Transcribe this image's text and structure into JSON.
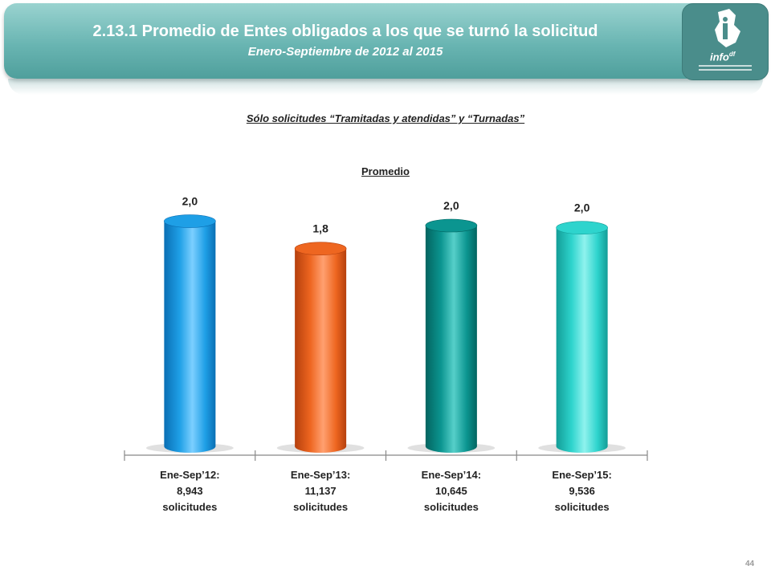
{
  "header": {
    "title": "2.13.1 Promedio de Entes obligados a los que se turnó la solicitud",
    "subtitle": "Enero-Septiembre de 2012 al 2015",
    "logo_text": "info",
    "logo_superscript": "df"
  },
  "section_title": "Sólo solicitudes “Tramitadas y atendidas” y “Turnadas”",
  "page_number": "44",
  "chart_data": {
    "type": "bar",
    "title": "Promedio",
    "categories": [
      [
        "Ene-Sep’12:",
        "8,943",
        "solicitudes"
      ],
      [
        "Ene-Sep’13:",
        "11,137",
        "solicitudes"
      ],
      [
        "Ene-Sep’14:",
        "10,645",
        "solicitudes"
      ],
      [
        "Ene-Sep’15:",
        "9,536",
        "solicitudes"
      ]
    ],
    "values": [
      2.05,
      1.8,
      2.01,
      1.99
    ],
    "value_labels": [
      "2,0",
      "1,8",
      "2,0",
      "2,0"
    ],
    "colors": [
      [
        "#0a6fb4",
        "#1e9fe6",
        "#7ccfff"
      ],
      [
        "#b5400d",
        "#ee6620",
        "#ffa070"
      ],
      [
        "#036460",
        "#0b9590",
        "#56cfc9"
      ],
      [
        "#139d97",
        "#2ed4cd",
        "#8ff2ee"
      ]
    ],
    "ylim": [
      0,
      2.2
    ],
    "grid": false
  }
}
